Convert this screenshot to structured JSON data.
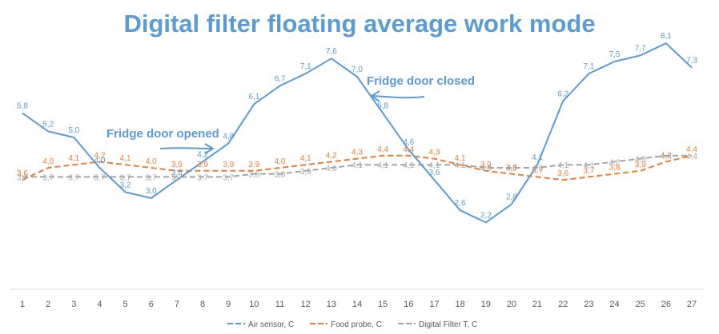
{
  "chart_data": {
    "type": "line",
    "title": "Digital filter floating average work mode",
    "xlabel": "",
    "ylabel": "",
    "x": [
      1,
      2,
      3,
      4,
      5,
      6,
      7,
      8,
      9,
      10,
      11,
      12,
      13,
      14,
      15,
      16,
      17,
      18,
      19,
      20,
      21,
      22,
      23,
      24,
      25,
      26,
      27
    ],
    "ylim": [
      0,
      9
    ],
    "grid": false,
    "legend_position": "bottom",
    "series": [
      {
        "name": "Air sensor, C",
        "color": "#5b9bd5",
        "dash": "solid",
        "values": [
          5.8,
          5.2,
          5.0,
          4.0,
          3.2,
          3.0,
          3.6,
          4.2,
          4.8,
          6.1,
          6.7,
          7.1,
          7.6,
          7.0,
          5.8,
          4.6,
          3.6,
          2.6,
          2.2,
          2.8,
          4.1,
          6.2,
          7.1,
          7.5,
          7.7,
          8.1,
          7.3
        ],
        "labels": [
          "5,8",
          "5,2",
          "5,0",
          "4,0",
          "3,2",
          "3,0",
          "3,6",
          "4,2",
          "4,8",
          "6,1",
          "6,7",
          "7,1",
          "7,6",
          "7,0",
          "5,8",
          "4,6",
          "3,6",
          "2,6",
          "2,2",
          "2,8",
          "4,1",
          "6,2",
          "7,1",
          "7,5",
          "7,7",
          "8,1",
          "7,3"
        ]
      },
      {
        "name": "Food probe, C",
        "color": "#ed7d31",
        "dash": "dashed",
        "values": [
          3.6,
          4.0,
          4.1,
          4.2,
          4.1,
          4.0,
          3.9,
          3.9,
          3.9,
          3.9,
          4.0,
          4.1,
          4.2,
          4.3,
          4.4,
          4.4,
          4.3,
          4.1,
          3.9,
          3.8,
          3.7,
          3.6,
          3.7,
          3.8,
          3.9,
          4.2,
          4.4
        ],
        "labels": [
          "3,6",
          "4,0",
          "4,1",
          "4,2",
          "4,1",
          "4,0",
          "3,9",
          "3,9",
          "3,9",
          "3,9",
          "4,0",
          "4,1",
          "4,2",
          "4,3",
          "4,4",
          "4,4",
          "4,3",
          "4,1",
          "3,9",
          "3,8",
          "3,7",
          "3,6",
          "3,7",
          "3,8",
          "3,9",
          "4,2",
          "4,4"
        ]
      },
      {
        "name": "Digital Filter T, C",
        "color": "#a5a5a5",
        "dash": "dashed",
        "values": [
          3.7,
          3.7,
          3.7,
          3.7,
          3.7,
          3.7,
          3.7,
          3.7,
          3.7,
          3.8,
          3.8,
          3.9,
          4.0,
          4.1,
          4.1,
          4.1,
          4.1,
          4.1,
          4.0,
          4.0,
          4.0,
          4.1,
          4.1,
          4.2,
          4.3,
          4.4,
          4.4
        ],
        "labels": [
          "3,7",
          "3,7",
          "3,7",
          "3,7",
          "3,7",
          "3,7",
          "3,7",
          "3,7",
          "3,7",
          "3,8",
          "3,8",
          "3,9",
          "4,0",
          "4,1",
          "4,1",
          "4,1",
          "4,1",
          "4,1",
          "4,0",
          "4,0",
          "4,0",
          "4,1",
          "4,1",
          "4,2",
          "4,3",
          "4,4",
          "4,4"
        ]
      }
    ],
    "annotations": [
      {
        "text": "Fridge door opened",
        "x": 7.5,
        "y": 6.2
      },
      {
        "text": "Fridge door closed",
        "x": 15.5,
        "y": 7.8
      }
    ]
  }
}
